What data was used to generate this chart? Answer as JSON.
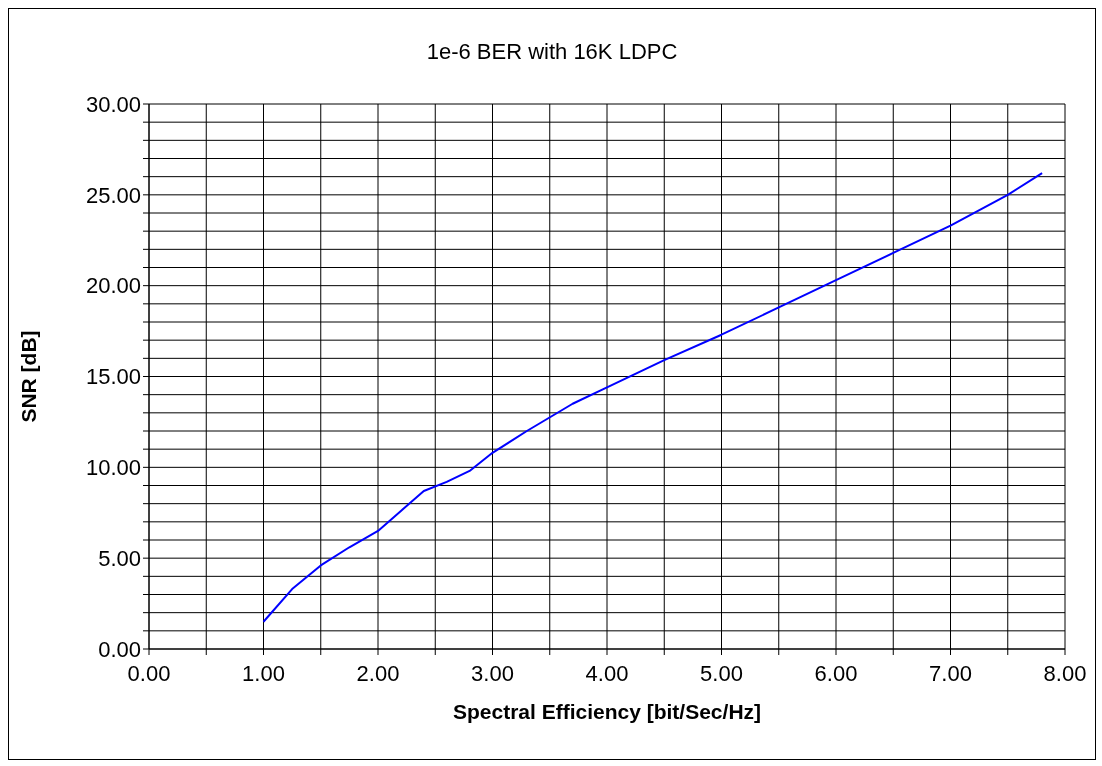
{
  "chart_data": {
    "type": "line",
    "title": "1e-6 BER with 16K LDPC",
    "xlabel": "Spectral Efficiency [bit/Sec/Hz]",
    "ylabel": "SNR  [dB]",
    "x": [
      1.0,
      1.25,
      1.5,
      1.75,
      2.0,
      2.2,
      2.4,
      2.6,
      2.8,
      3.0,
      3.3,
      3.7,
      4.0,
      4.5,
      5.0,
      5.5,
      6.0,
      6.5,
      7.0,
      7.5,
      7.8
    ],
    "series": [
      {
        "color": "#0000ff",
        "values": [
          1.5,
          3.3,
          4.6,
          5.6,
          6.5,
          7.6,
          8.7,
          9.2,
          9.8,
          10.8,
          12.0,
          13.5,
          14.4,
          15.9,
          17.3,
          18.8,
          20.3,
          21.8,
          23.3,
          25.0,
          26.2
        ]
      }
    ],
    "xlim": [
      0,
      8
    ],
    "ylim": [
      0,
      30
    ],
    "xticks": [
      {
        "value": 0,
        "label": "0.00"
      },
      {
        "value": 0.5,
        "label": null
      },
      {
        "value": 1,
        "label": "1.00"
      },
      {
        "value": 1.5,
        "label": null
      },
      {
        "value": 2,
        "label": "2.00"
      },
      {
        "value": 2.5,
        "label": null
      },
      {
        "value": 3,
        "label": "3.00"
      },
      {
        "value": 3.5,
        "label": null
      },
      {
        "value": 4,
        "label": "4.00"
      },
      {
        "value": 4.5,
        "label": null
      },
      {
        "value": 5,
        "label": "5.00"
      },
      {
        "value": 5.5,
        "label": null
      },
      {
        "value": 6,
        "label": "6.00"
      },
      {
        "value": 6.5,
        "label": null
      },
      {
        "value": 7,
        "label": "7.00"
      },
      {
        "value": 7.5,
        "label": null
      },
      {
        "value": 8,
        "label": "8.00"
      }
    ],
    "yticks": [
      {
        "value": 0,
        "label": "0.00"
      },
      {
        "value": 1,
        "label": null
      },
      {
        "value": 2,
        "label": null
      },
      {
        "value": 3,
        "label": null
      },
      {
        "value": 4,
        "label": null
      },
      {
        "value": 5,
        "label": "5.00"
      },
      {
        "value": 6,
        "label": null
      },
      {
        "value": 7,
        "label": null
      },
      {
        "value": 8,
        "label": null
      },
      {
        "value": 9,
        "label": null
      },
      {
        "value": 10,
        "label": "10.00"
      },
      {
        "value": 11,
        "label": null
      },
      {
        "value": 12,
        "label": null
      },
      {
        "value": 13,
        "label": null
      },
      {
        "value": 14,
        "label": null
      },
      {
        "value": 15,
        "label": "15.00"
      },
      {
        "value": 16,
        "label": null
      },
      {
        "value": 17,
        "label": null
      },
      {
        "value": 18,
        "label": null
      },
      {
        "value": 19,
        "label": null
      },
      {
        "value": 20,
        "label": "20.00"
      },
      {
        "value": 21,
        "label": null
      },
      {
        "value": 22,
        "label": null
      },
      {
        "value": 23,
        "label": null
      },
      {
        "value": 24,
        "label": null
      },
      {
        "value": 25,
        "label": "25.00"
      },
      {
        "value": 26,
        "label": null
      },
      {
        "value": 27,
        "label": null
      },
      {
        "value": 28,
        "label": null
      },
      {
        "value": 29,
        "label": null
      },
      {
        "value": 30,
        "label": "30.00"
      }
    ],
    "grid": true,
    "marker": "none",
    "line_style": "solid",
    "legend": false
  }
}
